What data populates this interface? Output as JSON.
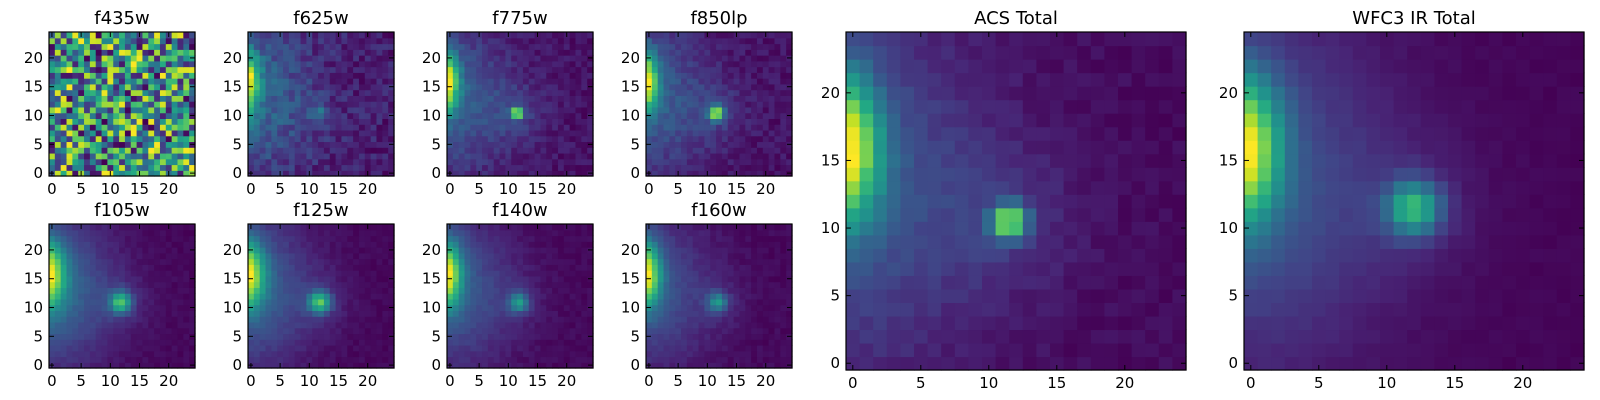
{
  "colormap": "viridis",
  "chart_data": [
    {
      "type": "heatmap",
      "title": "f435w",
      "image": "f435w",
      "grid_size": 25,
      "xticks": [
        0,
        5,
        10,
        15,
        20
      ],
      "yticks": [
        0,
        5,
        10,
        15,
        20
      ],
      "xlim": [
        -0.5,
        24.5
      ],
      "ylim": [
        -0.5,
        24.5
      ],
      "description_values": {
        "background": "uniform high-variance noise",
        "source": "none"
      }
    },
    {
      "type": "heatmap",
      "title": "f625w",
      "image": "f625w",
      "grid_size": 25,
      "xticks": [
        0,
        5,
        10,
        15,
        20
      ],
      "yticks": [
        0,
        5,
        10,
        15,
        20
      ],
      "xlim": [
        -0.5,
        24.5
      ],
      "ylim": [
        -0.5,
        24.5
      ]
    },
    {
      "type": "heatmap",
      "title": "f775w",
      "image": "f775w",
      "grid_size": 25,
      "xticks": [
        0,
        5,
        10,
        15,
        20
      ],
      "yticks": [
        0,
        5,
        10,
        15,
        20
      ],
      "xlim": [
        -0.5,
        24.5
      ],
      "ylim": [
        -0.5,
        24.5
      ]
    },
    {
      "type": "heatmap",
      "title": "f850lp",
      "image": "f850lp",
      "grid_size": 25,
      "xticks": [
        0,
        5,
        10,
        15,
        20
      ],
      "yticks": [
        0,
        5,
        10,
        15,
        20
      ],
      "xlim": [
        -0.5,
        24.5
      ],
      "ylim": [
        -0.5,
        24.5
      ]
    },
    {
      "type": "heatmap",
      "title": "f105w",
      "image": "f105w",
      "grid_size": 25,
      "xticks": [
        0,
        5,
        10,
        15,
        20
      ],
      "yticks": [
        0,
        5,
        10,
        15,
        20
      ],
      "xlim": [
        -0.5,
        24.5
      ],
      "ylim": [
        -0.5,
        24.5
      ]
    },
    {
      "type": "heatmap",
      "title": "f125w",
      "image": "f125w",
      "grid_size": 25,
      "xticks": [
        0,
        5,
        10,
        15,
        20
      ],
      "yticks": [
        0,
        5,
        10,
        15,
        20
      ],
      "xlim": [
        -0.5,
        24.5
      ],
      "ylim": [
        -0.5,
        24.5
      ]
    },
    {
      "type": "heatmap",
      "title": "f140w",
      "image": "f140w",
      "grid_size": 25,
      "xticks": [
        0,
        5,
        10,
        15,
        20
      ],
      "yticks": [
        0,
        5,
        10,
        15,
        20
      ],
      "xlim": [
        -0.5,
        24.5
      ],
      "ylim": [
        -0.5,
        24.5
      ]
    },
    {
      "type": "heatmap",
      "title": "f160w",
      "image": "f160w",
      "grid_size": 25,
      "xticks": [
        0,
        5,
        10,
        15,
        20
      ],
      "yticks": [
        0,
        5,
        10,
        15,
        20
      ],
      "xlim": [
        -0.5,
        24.5
      ],
      "ylim": [
        -0.5,
        24.5
      ]
    },
    {
      "type": "heatmap",
      "title": "ACS Total",
      "image": "acs_total",
      "grid_size": 25,
      "xticks": [
        0,
        5,
        10,
        15,
        20
      ],
      "yticks": [
        0,
        5,
        10,
        15,
        20
      ],
      "xlim": [
        -0.5,
        24.5
      ],
      "ylim": [
        -0.5,
        24.5
      ]
    },
    {
      "type": "heatmap",
      "title": "WFC3 IR Total",
      "image": "wfc3_total",
      "grid_size": 25,
      "xticks": [
        0,
        5,
        10,
        15,
        20
      ],
      "yticks": [
        0,
        5,
        10,
        15,
        20
      ],
      "xlim": [
        -0.5,
        24.5
      ],
      "ylim": [
        -0.5,
        24.5
      ]
    }
  ],
  "images": {
    "f435w": {
      "noise": 1.0,
      "left_amp": 0.0,
      "left_cx": -1.0,
      "left_cy": 16.0,
      "left_sx": 1.2,
      "left_sy": 4.0,
      "src_amp": 0.0,
      "src_cx": 11.5,
      "src_cy": 10.5,
      "src_sigma": 0.8,
      "diffuse": 0.0,
      "floor": 0.0,
      "seed": 7
    },
    "f625w": {
      "noise": 0.22,
      "left_amp": 1.0,
      "left_cx": -1.0,
      "left_cy": 16.0,
      "left_sx": 1.6,
      "left_sy": 3.5,
      "src_amp": 0.35,
      "src_cx": 11.5,
      "src_cy": 10.5,
      "src_sigma": 0.8,
      "diffuse": 0.35,
      "floor": 0.2,
      "seed": 11
    },
    "f775w": {
      "noise": 0.12,
      "left_amp": 1.0,
      "left_cx": -1.0,
      "left_cy": 16.0,
      "left_sx": 1.6,
      "left_sy": 3.5,
      "src_amp": 1.0,
      "src_cx": 11.5,
      "src_cy": 10.5,
      "src_sigma": 0.7,
      "diffuse": 0.3,
      "floor": 0.08,
      "seed": 13
    },
    "f850lp": {
      "noise": 0.12,
      "left_amp": 1.0,
      "left_cx": -1.0,
      "left_cy": 16.0,
      "left_sx": 1.7,
      "left_sy": 3.5,
      "src_amp": 1.0,
      "src_cx": 11.5,
      "src_cy": 10.5,
      "src_sigma": 0.8,
      "diffuse": 0.3,
      "floor": 0.08,
      "seed": 17
    },
    "f105w": {
      "noise": 0.06,
      "left_amp": 1.0,
      "left_cx": -1.0,
      "left_cy": 16.0,
      "left_sx": 2.2,
      "left_sy": 4.0,
      "src_amp": 0.8,
      "src_cx": 11.8,
      "src_cy": 11.0,
      "src_sigma": 1.3,
      "diffuse": 0.45,
      "floor": 0.05,
      "seed": 19
    },
    "f125w": {
      "noise": 0.06,
      "left_amp": 1.0,
      "left_cx": -1.0,
      "left_cy": 16.0,
      "left_sx": 2.2,
      "left_sy": 4.0,
      "src_amp": 0.8,
      "src_cx": 11.8,
      "src_cy": 11.0,
      "src_sigma": 1.3,
      "diffuse": 0.4,
      "floor": 0.05,
      "seed": 23
    },
    "f140w": {
      "noise": 0.06,
      "left_amp": 1.0,
      "left_cx": -1.0,
      "left_cy": 16.0,
      "left_sx": 2.0,
      "left_sy": 4.0,
      "src_amp": 0.55,
      "src_cx": 11.8,
      "src_cy": 11.0,
      "src_sigma": 1.2,
      "diffuse": 0.35,
      "floor": 0.04,
      "seed": 29
    },
    "f160w": {
      "noise": 0.06,
      "left_amp": 1.0,
      "left_cx": -1.0,
      "left_cy": 16.0,
      "left_sx": 2.0,
      "left_sy": 4.0,
      "src_amp": 0.5,
      "src_cx": 11.8,
      "src_cy": 11.0,
      "src_sigma": 1.2,
      "diffuse": 0.3,
      "floor": 0.03,
      "seed": 31
    },
    "acs_total": {
      "noise": 0.07,
      "left_amp": 1.0,
      "left_cx": -0.8,
      "left_cy": 16.0,
      "left_sx": 1.9,
      "left_sy": 3.8,
      "src_amp": 0.95,
      "src_cx": 11.5,
      "src_cy": 10.5,
      "src_sigma": 0.85,
      "diffuse": 0.3,
      "floor": 0.06,
      "seed": 37
    },
    "wfc3_total": {
      "noise": 0.03,
      "left_amp": 1.0,
      "left_cx": -0.8,
      "left_cy": 16.0,
      "left_sx": 2.0,
      "left_sy": 3.8,
      "src_amp": 0.68,
      "src_cx": 12.0,
      "src_cy": 11.5,
      "src_sigma": 1.4,
      "diffuse": 0.32,
      "floor": 0.03,
      "seed": 41
    }
  }
}
